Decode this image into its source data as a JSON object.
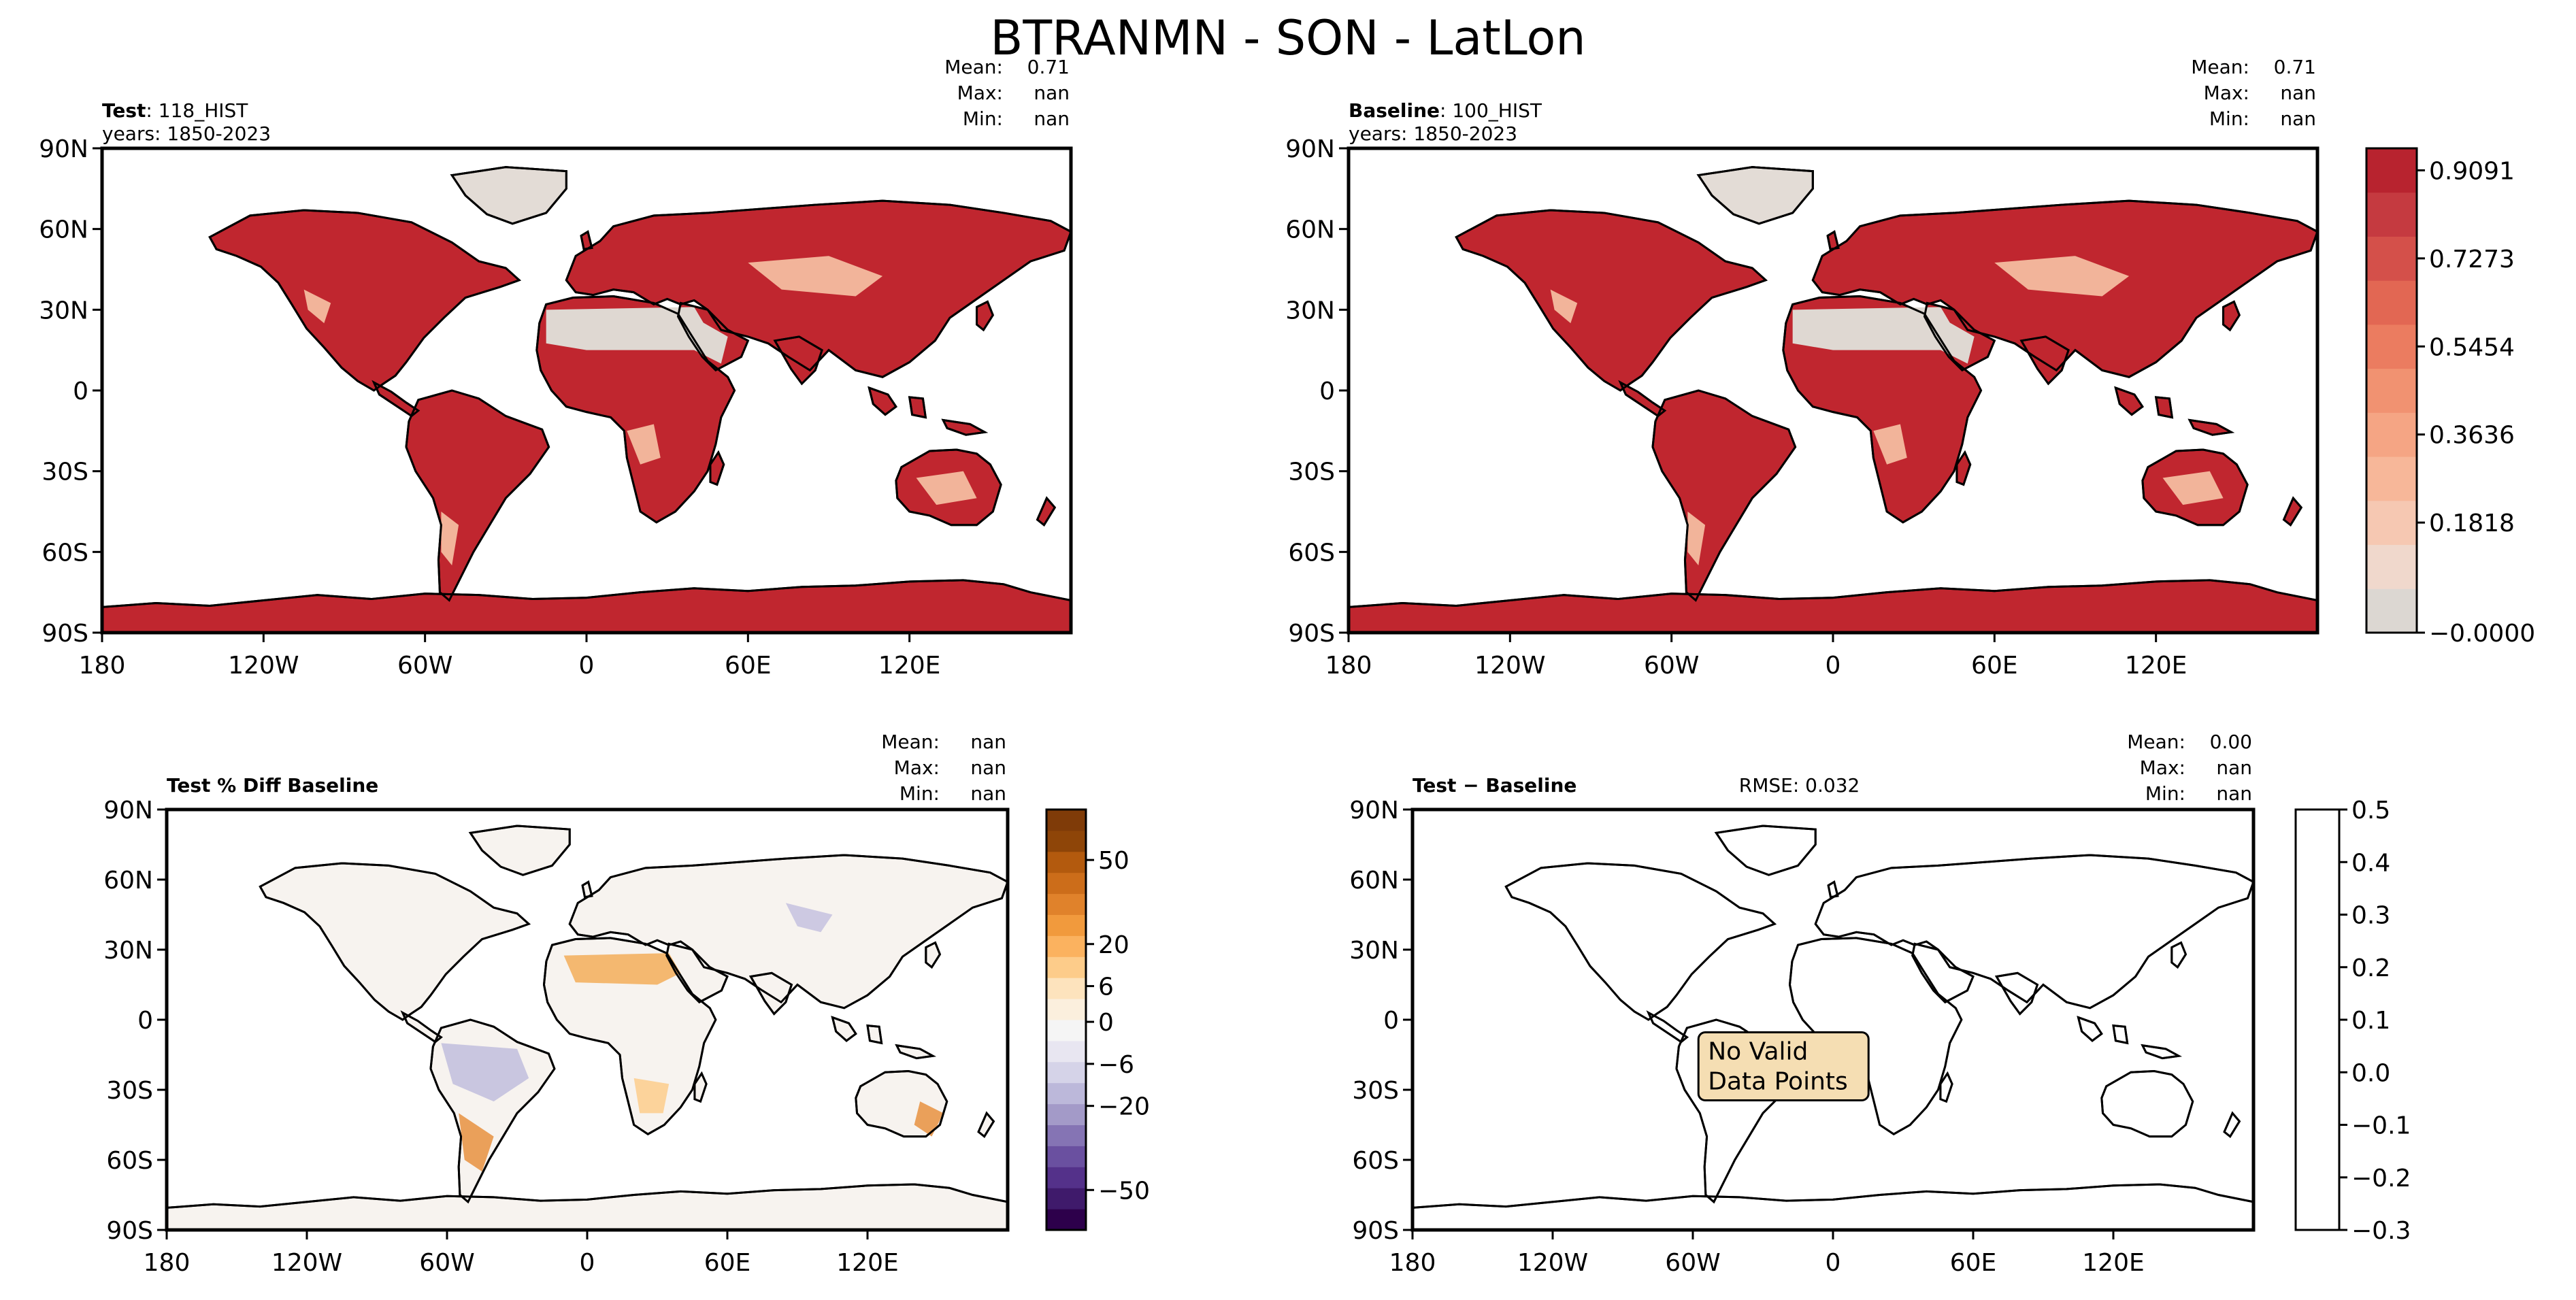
{
  "title": "BTRANMN - SON - LatLon",
  "x_ticks": [
    "180",
    "120W",
    "60W",
    "0",
    "60E",
    "120E"
  ],
  "y_ticks": [
    "90N",
    "60N",
    "30N",
    "0",
    "30S",
    "60S",
    "90S"
  ],
  "stat_labels": [
    "Mean:",
    "Max:",
    "Min:"
  ],
  "panels": [
    {
      "id": "test",
      "name_bold": "Test",
      "name_rest": ": 118_HIST",
      "years": "years: 1850-2023",
      "stats": [
        "0.71",
        "nan",
        "nan"
      ],
      "fill": "ramp"
    },
    {
      "id": "baseline",
      "name_bold": "Baseline",
      "name_rest": ": 100_HIST",
      "years": "years: 1850-2023",
      "stats": [
        "0.71",
        "nan",
        "nan"
      ],
      "fill": "ramp"
    },
    {
      "id": "pct-diff",
      "name_bold": "Test % Diff Baseline",
      "name_rest": "",
      "years": "",
      "stats": [
        "nan",
        "nan",
        "nan"
      ],
      "fill": "diff"
    },
    {
      "id": "diff",
      "name_bold": "Test − Baseline",
      "name_rest": "",
      "years": "",
      "rmse": "RMSE: 0.032",
      "stats": [
        "0.00",
        "nan",
        "nan"
      ],
      "fill": "none",
      "annotation": [
        "No Valid",
        "Data Points"
      ]
    }
  ],
  "colorbars": [
    {
      "id": "main",
      "colors": [
        "#dcd7d2",
        "#f0d8cc",
        "#f6c8b2",
        "#f7b799",
        "#f5a584",
        "#f19271",
        "#eb7c60",
        "#e26753",
        "#d4504a",
        "#c53a40",
        "#b8232f"
      ],
      "labels": [
        "0.9091",
        "0.7273",
        "0.5454",
        "0.3636",
        "0.1818",
        "−0.0000"
      ]
    },
    {
      "id": "pct",
      "colors": [
        "#2d004b",
        "#3f1a6b",
        "#54318a",
        "#6a50a0",
        "#8574b4",
        "#a39ac8",
        "#bcb8da",
        "#d5d3e8",
        "#e8e6f1",
        "#f5f5f5",
        "#fbefdd",
        "#fde3bd",
        "#fdcc8a",
        "#fbb25f",
        "#f19a3d",
        "#e0822b",
        "#cc6d1a",
        "#b35a0e",
        "#8e4508",
        "#7f3b08"
      ],
      "labels": [
        "50",
        "20",
        "6",
        "0",
        "−6",
        "−20",
        "−50"
      ]
    },
    {
      "id": "diff",
      "colors": [],
      "labels": [
        "0.5",
        "0.4",
        "0.3",
        "0.2",
        "0.1",
        "0.0",
        "−0.1",
        "−0.2",
        "−0.3"
      ]
    }
  ]
}
